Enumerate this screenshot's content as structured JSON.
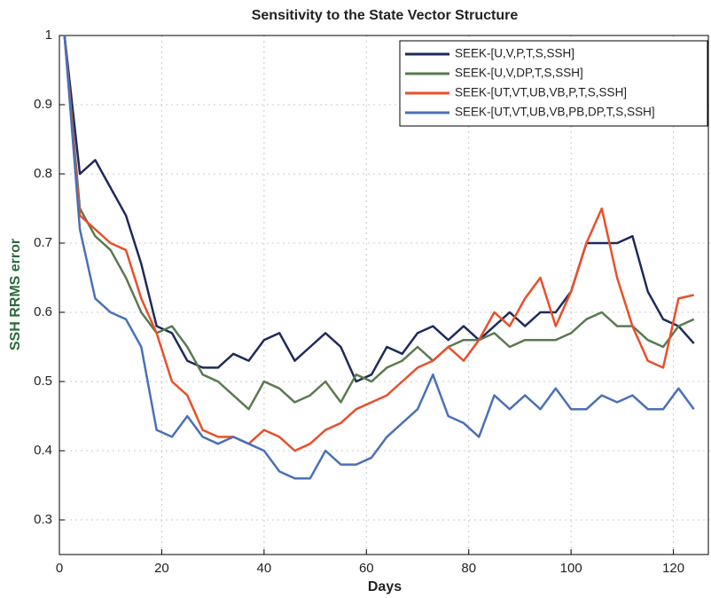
{
  "chart_data": {
    "type": "line",
    "title": "Sensitivity to the State Vector Structure",
    "x_label": "Days",
    "y_label": "SSH RRMS error",
    "x": [
      1,
      4,
      7,
      10,
      13,
      16,
      19,
      22,
      25,
      28,
      31,
      34,
      37,
      40,
      43,
      46,
      49,
      52,
      55,
      58,
      61,
      64,
      67,
      70,
      73,
      76,
      79,
      82,
      85,
      88,
      91,
      94,
      97,
      100,
      103,
      106,
      109,
      112,
      115,
      118,
      121,
      124
    ],
    "series": [
      {
        "name": "SEEK-[U,V,P,T,S,SSH]",
        "color": "#1f2a5c",
        "values": [
          1.0,
          0.8,
          0.82,
          0.78,
          0.74,
          0.67,
          0.58,
          0.57,
          0.53,
          0.52,
          0.52,
          0.54,
          0.53,
          0.56,
          0.57,
          0.53,
          0.55,
          0.57,
          0.55,
          0.5,
          0.51,
          0.55,
          0.54,
          0.57,
          0.58,
          0.56,
          0.58,
          0.56,
          0.58,
          0.6,
          0.58,
          0.6,
          0.6,
          0.63,
          0.7,
          0.7,
          0.7,
          0.71,
          0.63,
          0.59,
          0.58,
          0.555
        ]
      },
      {
        "name": "SEEK-[U,V,DP,T,S,SSH]",
        "color": "#5a7a50",
        "values": [
          1.0,
          0.75,
          0.71,
          0.69,
          0.65,
          0.6,
          0.57,
          0.58,
          0.55,
          0.51,
          0.5,
          0.48,
          0.46,
          0.5,
          0.49,
          0.47,
          0.48,
          0.5,
          0.47,
          0.51,
          0.5,
          0.52,
          0.53,
          0.55,
          0.53,
          0.55,
          0.56,
          0.56,
          0.57,
          0.55,
          0.56,
          0.56,
          0.56,
          0.57,
          0.59,
          0.6,
          0.58,
          0.58,
          0.56,
          0.55,
          0.58,
          0.59
        ]
      },
      {
        "name": "SEEK-[UT,VT,UB,VB,P,T,S,SSH]",
        "color": "#e8502a",
        "values": [
          1.0,
          0.74,
          0.72,
          0.7,
          0.69,
          0.62,
          0.57,
          0.5,
          0.48,
          0.43,
          0.42,
          0.42,
          0.41,
          0.43,
          0.42,
          0.4,
          0.41,
          0.43,
          0.44,
          0.46,
          0.47,
          0.48,
          0.5,
          0.52,
          0.53,
          0.55,
          0.53,
          0.56,
          0.6,
          0.58,
          0.62,
          0.65,
          0.58,
          0.63,
          0.7,
          0.75,
          0.65,
          0.58,
          0.53,
          0.52,
          0.62,
          0.625
        ]
      },
      {
        "name": "SEEK-[UT,VT,UB,VB,PB,DP,T,S,SSH]",
        "color": "#4a70b8",
        "values": [
          1.0,
          0.72,
          0.62,
          0.6,
          0.59,
          0.55,
          0.43,
          0.42,
          0.45,
          0.42,
          0.41,
          0.42,
          0.41,
          0.4,
          0.37,
          0.36,
          0.36,
          0.4,
          0.38,
          0.38,
          0.39,
          0.42,
          0.44,
          0.46,
          0.51,
          0.45,
          0.44,
          0.42,
          0.48,
          0.46,
          0.48,
          0.46,
          0.49,
          0.46,
          0.46,
          0.48,
          0.47,
          0.48,
          0.46,
          0.46,
          0.49,
          0.46
        ]
      }
    ],
    "xlim": [
      0,
      127
    ],
    "ylim": [
      0.25,
      1
    ],
    "xticks": [
      0,
      20,
      40,
      60,
      80,
      100,
      120
    ],
    "yticks": [
      0.3,
      0.4,
      0.5,
      0.6,
      0.7,
      0.8,
      0.9,
      1
    ],
    "grid": true,
    "legend": "upper right"
  }
}
